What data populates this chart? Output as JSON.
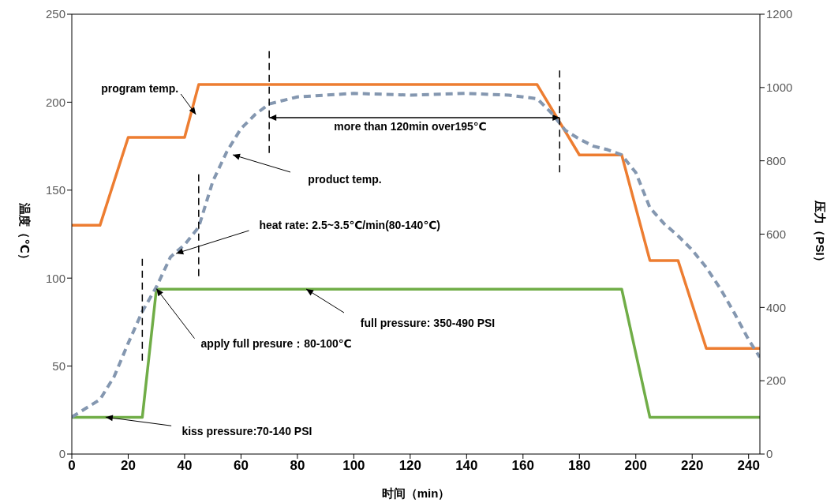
{
  "chart_data": {
    "type": "line",
    "xlabel": "时间（min）",
    "ylabel": "温度（℃）",
    "y2label": "压力（PSI）",
    "xlim": [
      0,
      244
    ],
    "xticks": [
      0,
      20,
      40,
      60,
      80,
      100,
      120,
      140,
      160,
      180,
      200,
      220,
      240
    ],
    "ylim": [
      0,
      250
    ],
    "yticks": [
      0,
      50,
      100,
      150,
      200,
      250
    ],
    "y2lim": [
      0,
      1200
    ],
    "y2ticks": [
      0,
      200,
      400,
      600,
      800,
      1000,
      1200
    ],
    "marker": "none",
    "series": [
      {
        "color": "#ed7d31",
        "line_style": "solid",
        "x": [
          0,
          10,
          20,
          40,
          45,
          165,
          180,
          195,
          205,
          215,
          225,
          244
        ],
        "values": [
          130,
          130,
          180,
          180,
          210,
          210,
          170,
          170,
          110,
          110,
          60,
          60
        ]
      },
      {
        "color": "#70ad47",
        "line_style": "solid",
        "axis": "y2",
        "x": [
          0,
          25,
          30,
          195,
          205,
          244
        ],
        "values": [
          100,
          100,
          450,
          450,
          100,
          100
        ]
      },
      {
        "color": "#8497b0",
        "line_style": "dashed",
        "x": [
          0,
          5,
          10,
          15,
          20,
          25,
          30,
          35,
          40,
          45,
          50,
          55,
          60,
          65,
          70,
          80,
          100,
          120,
          140,
          155,
          160,
          165,
          170,
          175,
          180,
          185,
          190,
          195,
          200,
          205,
          210,
          215,
          220,
          225,
          230,
          235,
          240,
          244
        ],
        "values": [
          21,
          26,
          31,
          44,
          63,
          81,
          95,
          112,
          119,
          129,
          155,
          172,
          185,
          193,
          199,
          203,
          205,
          204,
          205,
          204,
          203,
          202,
          194,
          184,
          179,
          175,
          173,
          170,
          160,
          140,
          131,
          124,
          116,
          106,
          94,
          80,
          65,
          55
        ]
      }
    ],
    "ref_lines": [
      {
        "axis": "x",
        "value": 25,
        "line_style": "dashed",
        "color": "#000000"
      },
      {
        "axis": "x",
        "value": 45,
        "line_style": "dashed",
        "color": "#000000"
      },
      {
        "axis": "x",
        "value": 70,
        "line_style": "dashed",
        "color": "#000000"
      },
      {
        "axis": "x",
        "value": 173,
        "line_style": "dashed",
        "color": "#000000"
      }
    ],
    "annotations": [
      {
        "text": "program temp.",
        "x": 44,
        "y": 193
      },
      "product temp.",
      "more than 120min over195℃",
      {
        "text": "heat rate: 2.5~3.5℃/min(80-140℃)",
        "x": 37,
        "y": 114
      },
      "full pressure: 350-490 PSI",
      {
        "text": "apply full presure：80-100℃",
        "x": 30,
        "y": 94
      },
      {
        "text": "kiss pressure:70-140 PSI",
        "x": 12,
        "y": 21
      }
    ]
  }
}
